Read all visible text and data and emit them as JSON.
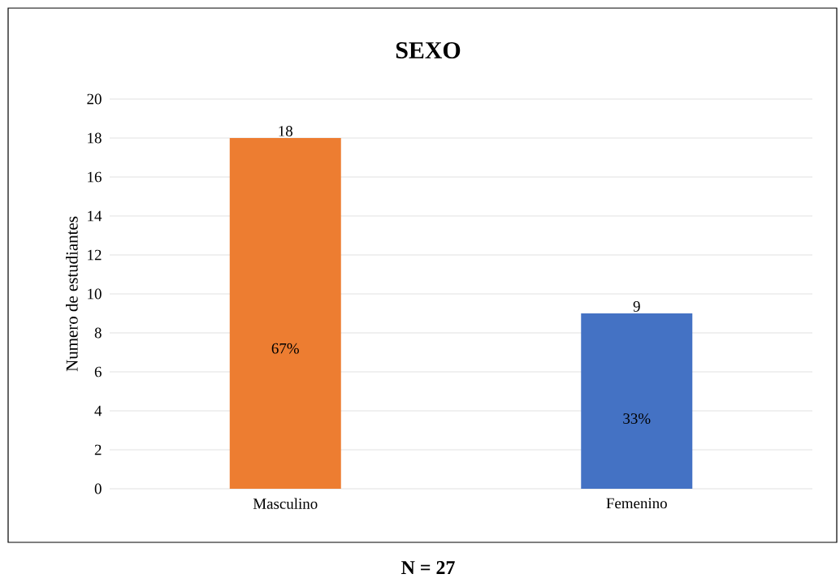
{
  "chart_data": {
    "type": "bar",
    "title": "SEXO",
    "ylabel": "Numero de estudiantes",
    "categories": [
      "Masculino",
      "Femenino"
    ],
    "values": [
      18,
      9
    ],
    "colors": [
      "#ed7d31",
      "#4472c4"
    ],
    "data_labels": true,
    "ylim": [
      0,
      20
    ],
    "yticks": [
      0,
      2,
      4,
      6,
      8,
      10,
      12,
      14,
      16,
      18,
      20
    ],
    "grid": "y",
    "annotations": [
      "67%",
      "33%",
      "N = 27"
    ]
  }
}
